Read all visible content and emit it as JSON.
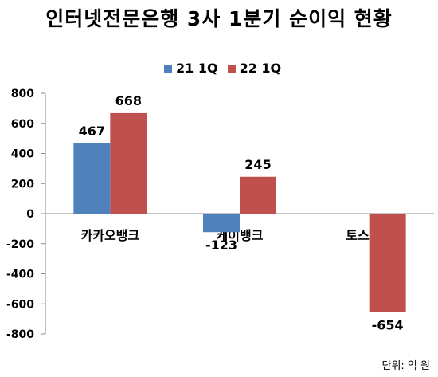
{
  "title": "인터넷전문은행 3사 1분기 순이익 현황",
  "unit_note": "단위: 억 원",
  "chart_data": {
    "type": "bar",
    "categories": [
      "카카오뱅크",
      "케이뱅크",
      "토스뱅크"
    ],
    "series": [
      {
        "name": "21 1Q",
        "color": "#4f81bd",
        "values": [
          467,
          -123,
          null
        ],
        "labels": [
          "467",
          "-123",
          ""
        ]
      },
      {
        "name": "22 1Q",
        "color": "#c0504d",
        "values": [
          668,
          245,
          -654
        ],
        "labels": [
          "668",
          "245",
          "-654"
        ]
      }
    ],
    "ylim": [
      -800,
      800
    ],
    "yticks": [
      800,
      600,
      400,
      200,
      0,
      -200,
      -400,
      -600,
      -800
    ],
    "grid": false,
    "legend_position": "top-center"
  }
}
